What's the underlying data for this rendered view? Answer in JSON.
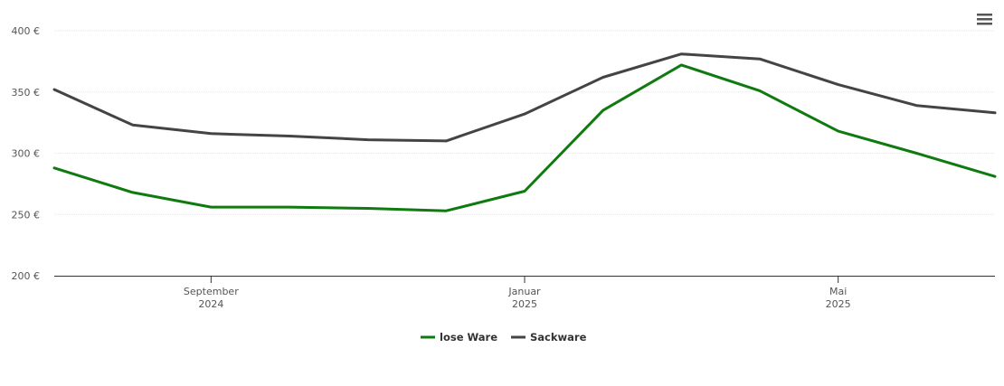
{
  "chart_data": {
    "type": "line",
    "x": [
      "2024-07",
      "2024-08",
      "2024-09",
      "2024-10",
      "2024-11",
      "2024-12",
      "2025-01",
      "2025-02",
      "2025-03",
      "2025-04",
      "2025-05",
      "2025-06",
      "2025-07"
    ],
    "xlim": [
      "2024-07",
      "2025-07"
    ],
    "xticks": [
      {
        "value": "2024-09",
        "label": [
          "September",
          "2024"
        ]
      },
      {
        "value": "2025-01",
        "label": [
          "Januar",
          "2025"
        ]
      },
      {
        "value": "2025-05",
        "label": [
          "Mai",
          "2025"
        ]
      }
    ],
    "ylim": [
      200,
      400
    ],
    "yticks": [
      {
        "value": 200,
        "label": "200 €"
      },
      {
        "value": 250,
        "label": "250 €"
      },
      {
        "value": 300,
        "label": "300 €"
      },
      {
        "value": 350,
        "label": "350 €"
      },
      {
        "value": 400,
        "label": "400 €"
      }
    ],
    "grid": true,
    "legend": "bottom",
    "series": [
      {
        "name": "lose Ware",
        "color": "#0f7a0f",
        "values": [
          288,
          268,
          256,
          256,
          255,
          253,
          269,
          335,
          372,
          351,
          318,
          300,
          281
        ]
      },
      {
        "name": "Sackware",
        "color": "#444444",
        "values": [
          352,
          323,
          316,
          314,
          311,
          310,
          332,
          362,
          381,
          377,
          356,
          339,
          333
        ]
      }
    ]
  }
}
